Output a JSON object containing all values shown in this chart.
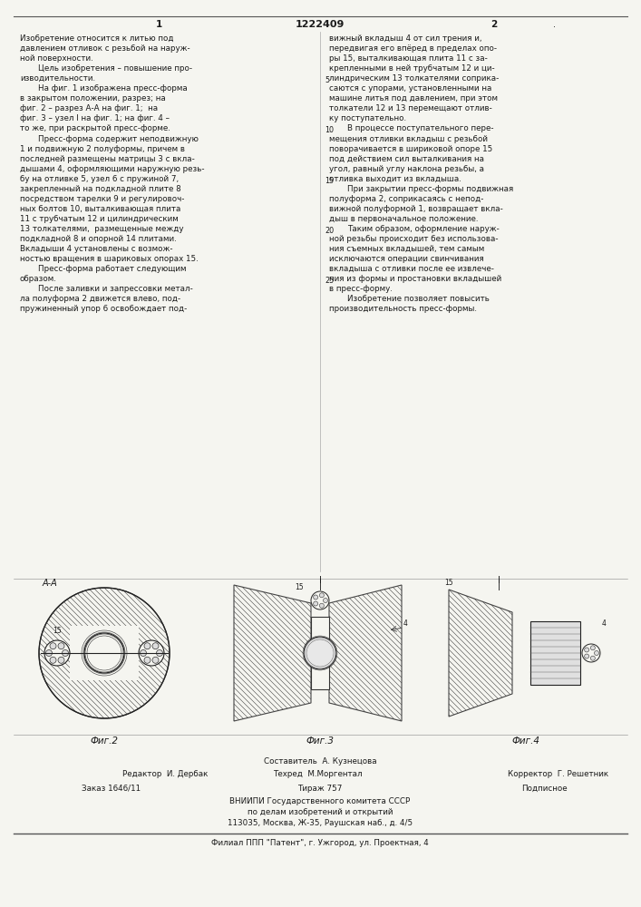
{
  "page_bg": "#f5f5f0",
  "text_color": "#1a1a1a",
  "patent_number": "1222409",
  "col1_num": "1",
  "col2_num": "2",
  "hatch_color": "#333333",
  "line_color": "#222222",
  "footer": {
    "composer": "Составитель  А. Кузнецова",
    "editor_label": "Редактор  И. Дербак",
    "techred": "Техред  М.Моргентал",
    "corrector": "Корректор  Г. Решетник",
    "order": "Заказ 1646/11",
    "tirazh": "Тираж 757",
    "podpisnoe": "Подписное",
    "vnipi": "ВНИИПИ Государственного комитета СССР",
    "po_delam": "по делам изобретений и открытий",
    "address": "113035, Москва, Ж-35, Раушская наб., д. 4/5",
    "filial": "Филиал ППП \"Патент\", г. Ужгород, ул. Проектная, 4"
  }
}
